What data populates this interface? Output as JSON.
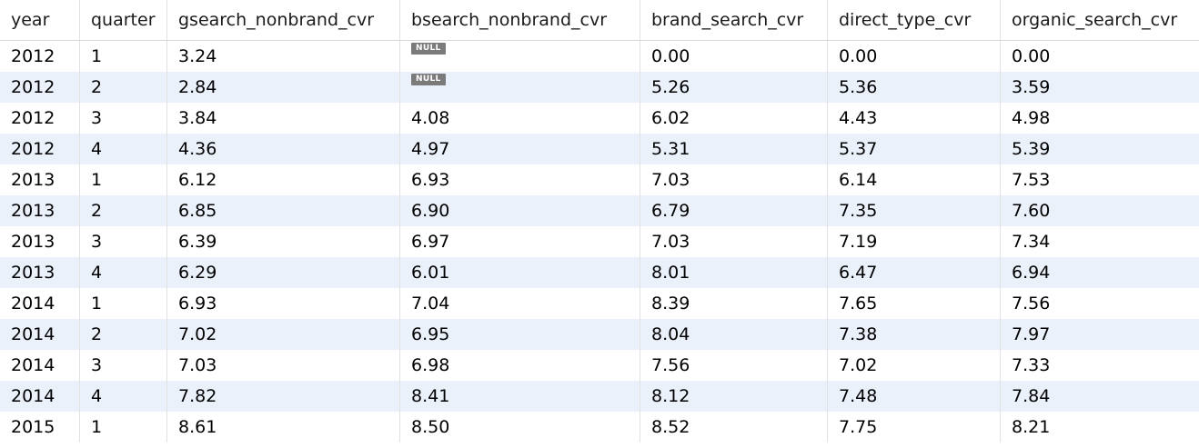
{
  "columns": [
    "year",
    "quarter",
    "gsearch_nonbrand_cvr",
    "bsearch_nonbrand_cvr",
    "brand_search_cvr",
    "direct_type_cvr",
    "organic_search_cvr"
  ],
  "null_label": "NULL",
  "rows": [
    [
      "2012",
      "1",
      "3.24",
      null,
      "0.00",
      "0.00",
      "0.00"
    ],
    [
      "2012",
      "2",
      "2.84",
      null,
      "5.26",
      "5.36",
      "3.59"
    ],
    [
      "2012",
      "3",
      "3.84",
      "4.08",
      "6.02",
      "4.43",
      "4.98"
    ],
    [
      "2012",
      "4",
      "4.36",
      "4.97",
      "5.31",
      "5.37",
      "5.39"
    ],
    [
      "2013",
      "1",
      "6.12",
      "6.93",
      "7.03",
      "6.14",
      "7.53"
    ],
    [
      "2013",
      "2",
      "6.85",
      "6.90",
      "6.79",
      "7.35",
      "7.60"
    ],
    [
      "2013",
      "3",
      "6.39",
      "6.97",
      "7.03",
      "7.19",
      "7.34"
    ],
    [
      "2013",
      "4",
      "6.29",
      "6.01",
      "8.01",
      "6.47",
      "6.94"
    ],
    [
      "2014",
      "1",
      "6.93",
      "7.04",
      "8.39",
      "7.65",
      "7.56"
    ],
    [
      "2014",
      "2",
      "7.02",
      "6.95",
      "8.04",
      "7.38",
      "7.97"
    ],
    [
      "2014",
      "3",
      "7.03",
      "6.98",
      "7.56",
      "7.02",
      "7.33"
    ],
    [
      "2014",
      "4",
      "7.82",
      "8.41",
      "8.12",
      "7.48",
      "7.84"
    ],
    [
      "2015",
      "1",
      "8.61",
      "8.50",
      "8.52",
      "7.75",
      "8.21"
    ]
  ],
  "colors": {
    "row_alt": "#eaf1fb",
    "null_badge": "#7b7b7b"
  }
}
